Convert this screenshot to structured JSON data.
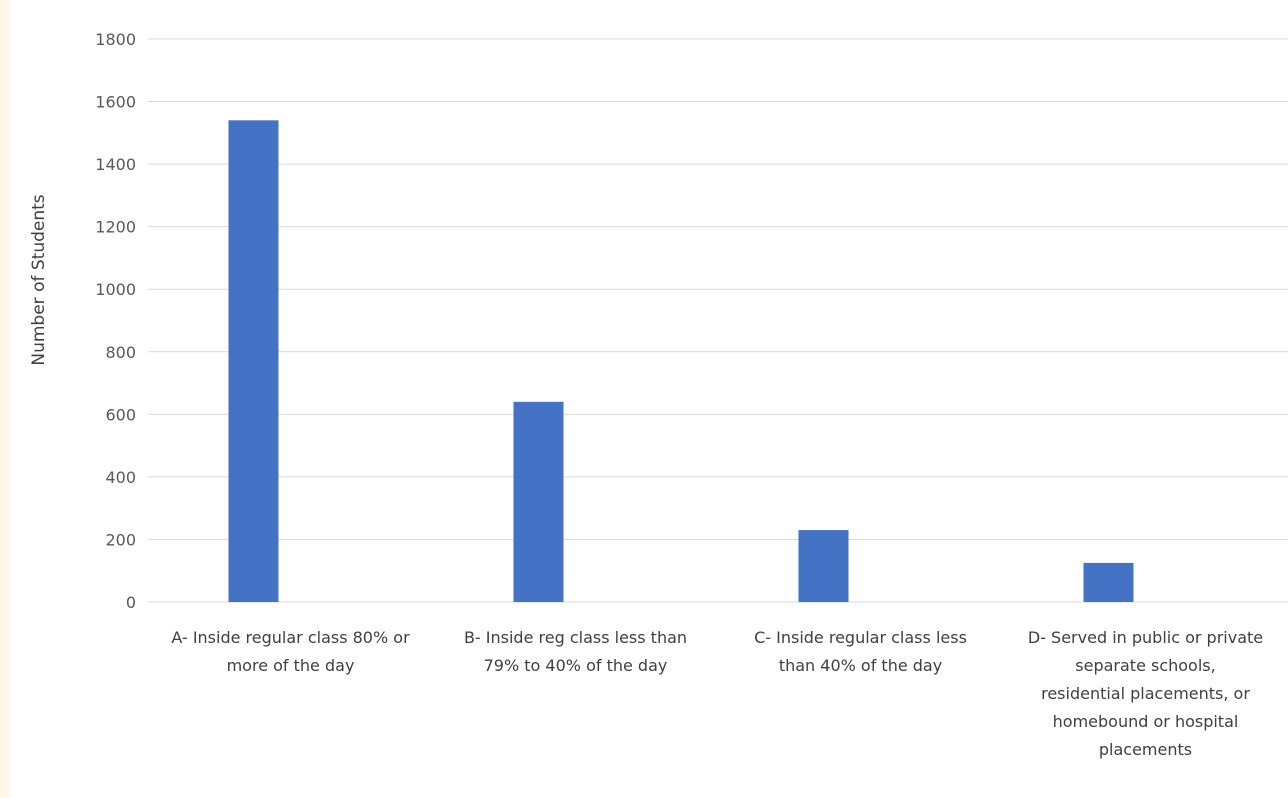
{
  "chart_data": {
    "type": "bar",
    "categories": [
      "A- Inside regular class 80% or more of the day",
      "B- Inside reg class less than 79% to 40% of the day",
      "C- Inside regular class less than 40% of the day",
      "D- Served in public or private separate schools, residential placements, or homebound or hospital placements"
    ],
    "category_lines": [
      [
        "A- Inside regular class 80% or",
        "more of the day"
      ],
      [
        "B- Inside reg class less than",
        "79% to 40% of the day"
      ],
      [
        "C- Inside regular class less",
        "than 40% of the day"
      ],
      [
        "D- Served in public or private",
        "separate schools,",
        "residential placements, or",
        "homebound or hospital",
        "placements"
      ]
    ],
    "values": [
      1540,
      640,
      230,
      125
    ],
    "ylabel": "Number of Students",
    "xlabel": "",
    "ylim": [
      0,
      1800
    ],
    "yticks": [
      "0",
      "200",
      "400",
      "600",
      "800",
      "1000",
      "1200",
      "1400",
      "1600",
      "1800"
    ],
    "grid": true,
    "legend": "none",
    "bar_color": "#4472c4",
    "grid_color": "#d9d9d9"
  }
}
